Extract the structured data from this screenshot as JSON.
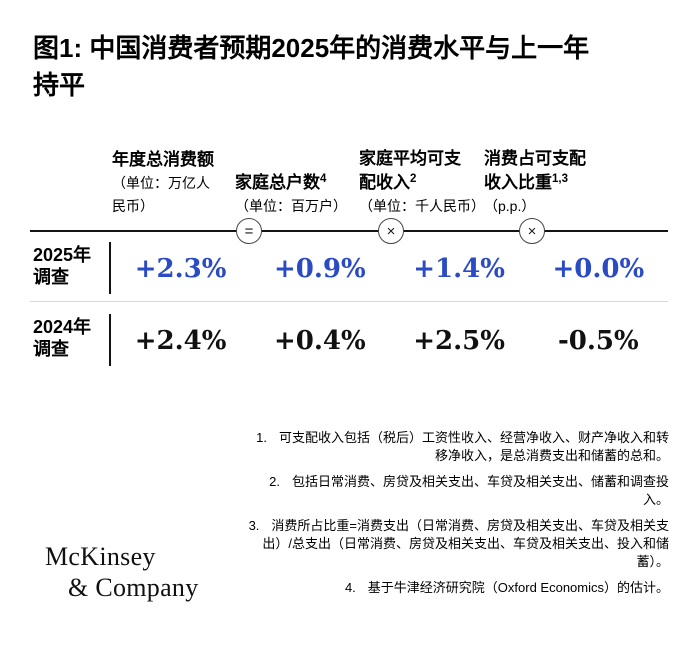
{
  "page": {
    "title_lines": [
      "图1: 中国消费者预期2025年的消费水平与上一年",
      "持平"
    ]
  },
  "table": {
    "columns": [
      {
        "title_lines": [
          "年度总消费额"
        ],
        "sup": "",
        "unit_lines": [
          "（单位：万亿人",
          "民币）"
        ]
      },
      {
        "title_lines": [
          "家庭总户数"
        ],
        "sup": "4",
        "unit_lines": [
          "（单位：百万户）"
        ]
      },
      {
        "title_lines": [
          "家庭平均可支",
          "配收入"
        ],
        "sup": "2",
        "unit_lines": [
          "（单位：千人民币）"
        ]
      },
      {
        "title_lines": [
          "消费占可支配",
          "收入比重"
        ],
        "sup": "1,3",
        "unit_lines": [
          "（p.p.）"
        ]
      }
    ],
    "operators": [
      "=",
      "×",
      "×"
    ],
    "rows": [
      {
        "label_lines": [
          "2025年",
          "调查"
        ],
        "values": [
          "+2.3%",
          "+0.9%",
          "+1.4%",
          "+0.0%"
        ]
      },
      {
        "label_lines": [
          "2024年",
          "调查"
        ],
        "values": [
          "+2.4%",
          "+0.4%",
          "+2.5%",
          "-0.5%"
        ]
      }
    ]
  },
  "footnotes": [
    {
      "num": "1.",
      "text": "可支配收入包括（税后）工资性收入、经营净收入、财产净收入和转移净收入，是总消费支出和储蓄的总和。"
    },
    {
      "num": "2.",
      "text": "包括日常消费、房贷及相关支出、车贷及相关支出、储蓄和调查投入。"
    },
    {
      "num": "3.",
      "text": "消费所占比重=消费支出（日常消费、房贷及相关支出、车贷及相关支出）/总支出（日常消费、房贷及相关支出、车贷及相关支出、投入和储蓄）。"
    },
    {
      "num": "4.",
      "text": "基于牛津经济研究院（Oxford Economics）的估计。"
    }
  ],
  "logo": {
    "line1": "McKinsey",
    "line2": "& Company"
  },
  "colors": {
    "accent_blue": "#2b4bc4",
    "text_black": "#111111"
  },
  "chart_data": {
    "type": "table",
    "title": "图1: 中国消费者预期2025年的消费水平与上一年持平",
    "columns": [
      {
        "label": "年度总消费额",
        "unit": "万亿人民币",
        "footnote_refs": []
      },
      {
        "label": "家庭总户数",
        "unit": "百万户",
        "footnote_refs": [
          4
        ]
      },
      {
        "label": "家庭平均可支配收入",
        "unit": "千人民币",
        "footnote_refs": [
          2
        ]
      },
      {
        "label": "消费占可支配收入比重",
        "unit": "p.p.",
        "footnote_refs": [
          1,
          3
        ]
      }
    ],
    "relation_operators_between_columns": [
      "=",
      "×",
      "×"
    ],
    "rows": [
      {
        "label": "2025年调查",
        "values_pct": [
          2.3,
          0.9,
          1.4,
          0.0
        ],
        "display": [
          "+2.3%",
          "+0.9%",
          "+1.4%",
          "+0.0%"
        ],
        "value_color": "#2b4bc4"
      },
      {
        "label": "2024年调查",
        "values_pct": [
          2.4,
          0.4,
          2.5,
          -0.5
        ],
        "display": [
          "+2.4%",
          "+0.4%",
          "+2.5%",
          "-0.5%"
        ],
        "value_color": "#111111"
      }
    ],
    "source": "McKinsey & Company"
  }
}
